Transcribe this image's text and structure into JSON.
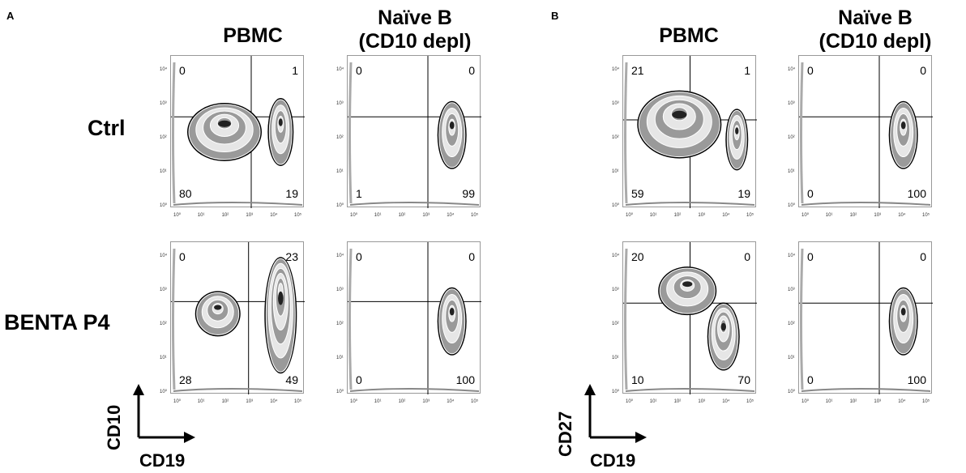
{
  "panels": [
    {
      "letter": "A",
      "columns": [
        "PBMC",
        "Naïve B\n(CD10 depl)"
      ],
      "rows": [
        "Ctrl",
        "BENTA P4"
      ],
      "x_axis": "CD19",
      "y_axis": "CD10",
      "quadrants": [
        [
          [
            "0",
            "1",
            "80",
            "19"
          ],
          [
            "0",
            "0",
            "1",
            "99"
          ]
        ],
        [
          [
            "0",
            "23",
            "28",
            "49"
          ],
          [
            "0",
            "0",
            "0",
            "100"
          ]
        ]
      ]
    },
    {
      "letter": "B",
      "columns": [
        "PBMC",
        "Naïve B\n(CD10 depl)"
      ],
      "x_axis": "CD19",
      "y_axis": "CD27",
      "quadrants": [
        [
          [
            "21",
            "1",
            "59",
            "19"
          ],
          [
            "0",
            "0",
            "0",
            "100"
          ]
        ],
        [
          [
            "20",
            "0",
            "10",
            "70"
          ],
          [
            "0",
            "0",
            "0",
            "100"
          ]
        ]
      ]
    }
  ],
  "tick_labels_x": [
    "10⁰",
    "10¹",
    "10²",
    "10³",
    "10⁴",
    "10⁵"
  ],
  "tick_labels_y": [
    "10⁰",
    "10¹",
    "10²",
    "10³",
    "10⁴"
  ]
}
